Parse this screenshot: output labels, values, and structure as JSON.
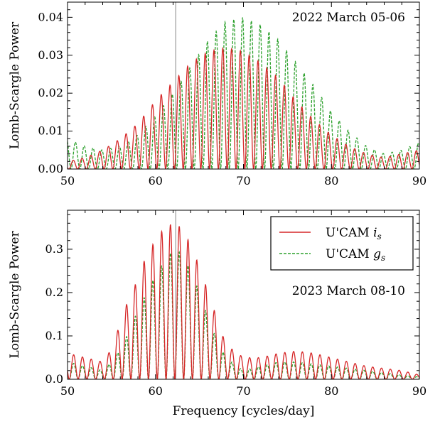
{
  "colors": {
    "is": "#d62728",
    "gs": "#2ca02c",
    "vline": "#999999"
  },
  "chart_data": [
    {
      "type": "line",
      "title": "",
      "annotation": "2022 March 05-06",
      "xlabel": "",
      "ylabel": "Lomb-Scargle Power",
      "xlim": [
        50,
        90
      ],
      "ylim": [
        0,
        0.044
      ],
      "xticks": [
        50,
        60,
        70,
        80,
        90
      ],
      "xtick_labels": [
        "50",
        "60",
        "70",
        "80",
        "90"
      ],
      "yticks": [
        0,
        0.01,
        0.02,
        0.03,
        0.04
      ],
      "ytick_labels": [
        "0.00",
        "0.01",
        "0.02",
        "0.03",
        "0.04"
      ],
      "vline_x": 62.3,
      "grid": false,
      "legend": null,
      "series": [
        {
          "key": "is",
          "style": "solid",
          "alias_spacing": 1.0,
          "alias_phase": 0.35,
          "envelope_x": [
            50,
            52,
            54,
            56,
            58,
            60,
            62,
            64,
            66,
            68,
            70,
            72,
            74,
            76,
            78,
            80,
            82,
            84,
            86,
            88,
            90
          ],
          "envelope_y": [
            0.002,
            0.003,
            0.005,
            0.008,
            0.012,
            0.018,
            0.023,
            0.028,
            0.031,
            0.032,
            0.031,
            0.028,
            0.024,
            0.018,
            0.013,
            0.009,
            0.006,
            0.004,
            0.003,
            0.004,
            0.005
          ]
        },
        {
          "key": "gs",
          "style": "dashed",
          "alias_spacing": 1.0,
          "alias_phase": 0.1,
          "envelope_x": [
            50,
            52,
            54,
            56,
            58,
            60,
            62,
            64,
            66,
            68,
            70,
            72,
            74,
            76,
            78,
            80,
            82,
            84,
            86,
            88,
            90
          ],
          "envelope_y": [
            0.008,
            0.006,
            0.005,
            0.006,
            0.009,
            0.014,
            0.02,
            0.027,
            0.034,
            0.039,
            0.04,
            0.038,
            0.034,
            0.028,
            0.022,
            0.015,
            0.01,
            0.006,
            0.004,
            0.005,
            0.007
          ]
        }
      ]
    },
    {
      "type": "line",
      "title": "",
      "annotation": "2023 March 08-10",
      "xlabel": "Frequency [cycles/day]",
      "ylabel": "Lomb-Scargle Power",
      "xlim": [
        50,
        90
      ],
      "ylim": [
        0,
        0.39
      ],
      "xticks": [
        50,
        60,
        70,
        80,
        90
      ],
      "xtick_labels": [
        "50",
        "60",
        "70",
        "80",
        "90"
      ],
      "yticks": [
        0,
        0.1,
        0.2,
        0.3
      ],
      "ytick_labels": [
        "0.0",
        "0.1",
        "0.2",
        "0.3"
      ],
      "vline_x": 62.3,
      "grid": false,
      "legend": {
        "position": "top-right",
        "entries": [
          {
            "key": "is",
            "label": "U'CAM ",
            "sub_base": "i",
            "sub": "s"
          },
          {
            "key": "gs",
            "label": "U'CAM ",
            "sub_base": "g",
            "sub": "s"
          }
        ]
      },
      "series": [
        {
          "key": "is",
          "style": "solid",
          "alias_spacing": 1.0,
          "alias_phase": 0.3,
          "envelope_x": [
            50,
            52,
            54,
            55,
            56,
            57,
            58,
            59,
            60,
            61,
            62,
            63,
            64,
            65,
            66,
            67,
            68,
            70,
            72,
            74,
            76,
            78,
            80,
            82,
            84,
            86,
            88,
            90
          ],
          "envelope_y": [
            0.06,
            0.05,
            0.04,
            0.07,
            0.13,
            0.19,
            0.23,
            0.29,
            0.32,
            0.35,
            0.36,
            0.35,
            0.31,
            0.26,
            0.2,
            0.14,
            0.08,
            0.05,
            0.05,
            0.06,
            0.065,
            0.06,
            0.05,
            0.04,
            0.03,
            0.025,
            0.02,
            0.01
          ]
        },
        {
          "key": "gs",
          "style": "dashed",
          "alias_spacing": 1.0,
          "alias_phase": 0.3,
          "envelope_x": [
            50,
            52,
            54,
            55,
            56,
            57,
            58,
            59,
            60,
            61,
            62,
            63,
            64,
            65,
            66,
            67,
            68,
            70,
            72,
            74,
            76,
            78,
            80,
            82,
            84,
            86,
            88,
            90
          ],
          "envelope_y": [
            0.04,
            0.03,
            0.02,
            0.04,
            0.07,
            0.11,
            0.16,
            0.2,
            0.24,
            0.27,
            0.3,
            0.29,
            0.25,
            0.2,
            0.14,
            0.09,
            0.05,
            0.02,
            0.03,
            0.04,
            0.04,
            0.035,
            0.03,
            0.025,
            0.02,
            0.015,
            0.01,
            0.005
          ]
        }
      ]
    }
  ]
}
